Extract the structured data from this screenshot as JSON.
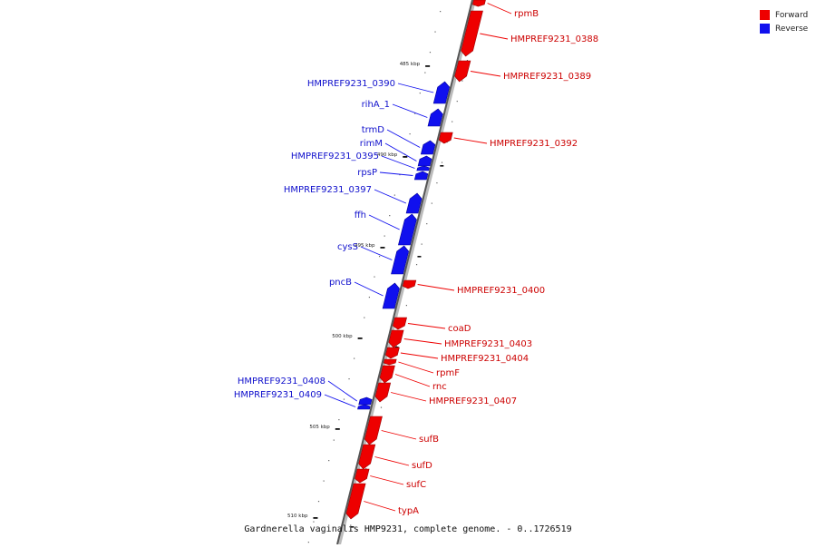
{
  "colors": {
    "forward": "#ee0000",
    "reverse": "#1010ee",
    "backbone": "#777777"
  },
  "legend": [
    {
      "label": "Forward",
      "color": "#ee0000"
    },
    {
      "label": "Reverse",
      "color": "#1010ee"
    }
  ],
  "caption": "Gardnerella vaginalis HMP9231, complete genome. - 0..1726519",
  "ticks": [
    {
      "label": "485 kbp",
      "kbp": 485
    },
    {
      "label": "490 kbp",
      "kbp": 490
    },
    {
      "label": "495 kbp",
      "kbp": 495
    },
    {
      "label": "500 kbp",
      "kbp": 500
    },
    {
      "label": "505 kbp",
      "kbp": 505
    },
    {
      "label": "510 kbp",
      "kbp": 510
    }
  ],
  "genes": [
    {
      "name": "rpmB",
      "strand": "forward"
    },
    {
      "name": "HMPREF9231_0388",
      "strand": "forward"
    },
    {
      "name": "HMPREF9231_0389",
      "strand": "forward"
    },
    {
      "name": "HMPREF9231_0390",
      "strand": "reverse"
    },
    {
      "name": "rihA_1",
      "strand": "reverse"
    },
    {
      "name": "HMPREF9231_0392",
      "strand": "forward"
    },
    {
      "name": "trmD",
      "strand": "reverse"
    },
    {
      "name": "rimM",
      "strand": "reverse"
    },
    {
      "name": "HMPREF9231_0395",
      "strand": "reverse"
    },
    {
      "name": "rpsP",
      "strand": "reverse"
    },
    {
      "name": "HMPREF9231_0397",
      "strand": "reverse"
    },
    {
      "name": "ffh",
      "strand": "reverse"
    },
    {
      "name": "cysS",
      "strand": "reverse"
    },
    {
      "name": "pncB",
      "strand": "reverse"
    },
    {
      "name": "HMPREF9231_0400",
      "strand": "forward"
    },
    {
      "name": "coaD",
      "strand": "forward"
    },
    {
      "name": "HMPREF9231_0403",
      "strand": "forward"
    },
    {
      "name": "HMPREF9231_0404",
      "strand": "forward"
    },
    {
      "name": "rpmF",
      "strand": "forward"
    },
    {
      "name": "rnc",
      "strand": "forward"
    },
    {
      "name": "HMPREF9231_0407",
      "strand": "forward"
    },
    {
      "name": "HMPREF9231_0408",
      "strand": "reverse"
    },
    {
      "name": "HMPREF9231_0409",
      "strand": "reverse"
    },
    {
      "name": "sufB",
      "strand": "forward"
    },
    {
      "name": "sufD",
      "strand": "forward"
    },
    {
      "name": "sufC",
      "strand": "forward"
    },
    {
      "name": "typA",
      "strand": "forward"
    }
  ]
}
